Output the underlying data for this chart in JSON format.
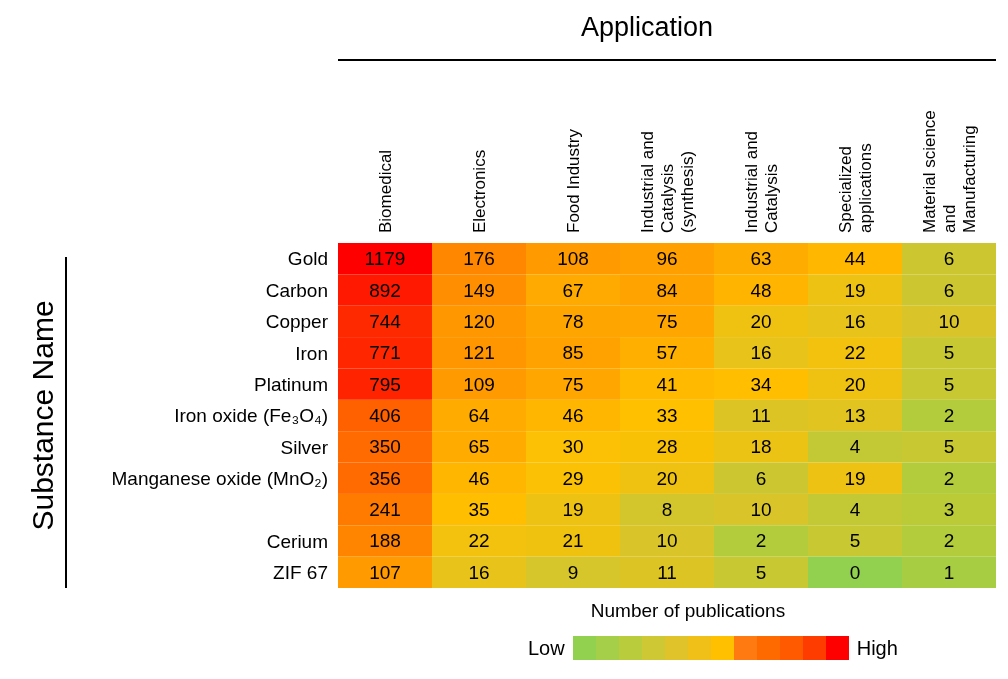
{
  "chart_data": {
    "type": "heatmap",
    "title": "Application",
    "ylabel": "Substance Name",
    "clabel": "Number of publications",
    "annotations": [
      "Low",
      "High"
    ],
    "categories": [
      "Biomedical",
      "Electronics",
      "Food Industry",
      "Industrial and Catalysis (synthesis)",
      "Industrial and Catalysis",
      "Specialized applications",
      "Material science and Manufacturing"
    ],
    "y_categories": [
      "Gold",
      "Carbon",
      "Copper",
      "Iron",
      "Platinum",
      "Iron oxide (Fe₃O₄)",
      "Silver",
      "Manganese oxide (MnO₂)",
      null,
      "Cerium",
      "ZIF 67"
    ],
    "cells": [
      [
        1179,
        176,
        108,
        96,
        63,
        44,
        6
      ],
      [
        892,
        149,
        67,
        84,
        48,
        19,
        6
      ],
      [
        744,
        120,
        78,
        75,
        20,
        16,
        10
      ],
      [
        771,
        121,
        85,
        57,
        16,
        22,
        5
      ],
      [
        795,
        109,
        75,
        41,
        34,
        20,
        5
      ],
      [
        406,
        64,
        46,
        33,
        11,
        13,
        2
      ],
      [
        350,
        65,
        30,
        28,
        18,
        4,
        5
      ],
      [
        356,
        46,
        29,
        20,
        6,
        19,
        2
      ],
      [
        241,
        35,
        19,
        8,
        10,
        4,
        3
      ],
      [
        188,
        22,
        21,
        10,
        2,
        5,
        2
      ],
      [
        107,
        16,
        9,
        11,
        5,
        0,
        1
      ]
    ],
    "data_labels": true
  }
}
